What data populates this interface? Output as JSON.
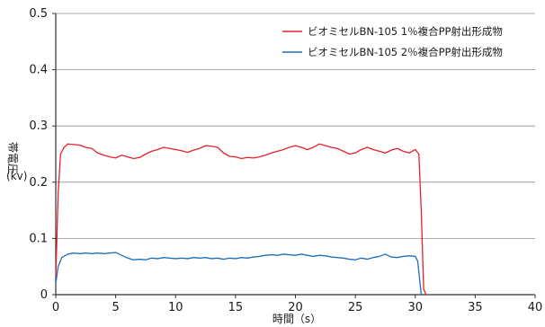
{
  "chart_data": {
    "type": "line",
    "xlabel": "時間（s）",
    "ylabel": [
      "帯電圧",
      "(kv)"
    ],
    "xlim": [
      0,
      40
    ],
    "ylim": [
      0,
      0.5
    ],
    "xticks": [
      "0",
      "5",
      "10",
      "15",
      "20",
      "25",
      "30",
      "35",
      "40"
    ],
    "yticks": [
      "0",
      "0.1",
      "0.2",
      "0.3",
      "0.4",
      "0.5"
    ],
    "grid": "horizontal",
    "legend_position": "top-right",
    "series": [
      {
        "name": "ビオミセルBN-105 1％複合PP射出形成物",
        "color": "#e8202a",
        "points": [
          [
            0,
            0.03
          ],
          [
            0.2,
            0.18
          ],
          [
            0.4,
            0.25
          ],
          [
            0.7,
            0.262
          ],
          [
            1,
            0.268
          ],
          [
            1.5,
            0.267
          ],
          [
            2,
            0.266
          ],
          [
            2.5,
            0.262
          ],
          [
            3,
            0.26
          ],
          [
            3.5,
            0.252
          ],
          [
            4,
            0.248
          ],
          [
            4.5,
            0.245
          ],
          [
            5,
            0.243
          ],
          [
            5.5,
            0.248
          ],
          [
            6,
            0.245
          ],
          [
            6.5,
            0.242
          ],
          [
            7,
            0.244
          ],
          [
            7.5,
            0.25
          ],
          [
            8,
            0.255
          ],
          [
            8.5,
            0.258
          ],
          [
            9,
            0.262
          ],
          [
            9.5,
            0.26
          ],
          [
            10,
            0.258
          ],
          [
            10.5,
            0.256
          ],
          [
            11,
            0.253
          ],
          [
            11.5,
            0.257
          ],
          [
            12,
            0.26
          ],
          [
            12.5,
            0.265
          ],
          [
            13,
            0.264
          ],
          [
            13.5,
            0.262
          ],
          [
            14,
            0.252
          ],
          [
            14.5,
            0.246
          ],
          [
            15,
            0.245
          ],
          [
            15.5,
            0.242
          ],
          [
            16,
            0.244
          ],
          [
            16.5,
            0.243
          ],
          [
            17,
            0.245
          ],
          [
            17.5,
            0.248
          ],
          [
            18,
            0.252
          ],
          [
            18.5,
            0.255
          ],
          [
            19,
            0.258
          ],
          [
            19.5,
            0.262
          ],
          [
            20,
            0.265
          ],
          [
            20.5,
            0.262
          ],
          [
            21,
            0.258
          ],
          [
            21.5,
            0.262
          ],
          [
            22,
            0.268
          ],
          [
            22.5,
            0.265
          ],
          [
            23,
            0.262
          ],
          [
            23.5,
            0.26
          ],
          [
            24,
            0.255
          ],
          [
            24.5,
            0.25
          ],
          [
            25,
            0.252
          ],
          [
            25.5,
            0.258
          ],
          [
            26,
            0.262
          ],
          [
            26.5,
            0.258
          ],
          [
            27,
            0.255
          ],
          [
            27.5,
            0.252
          ],
          [
            28,
            0.257
          ],
          [
            28.5,
            0.26
          ],
          [
            29,
            0.255
          ],
          [
            29.5,
            0.252
          ],
          [
            30,
            0.258
          ],
          [
            30.3,
            0.25
          ],
          [
            30.5,
            0.15
          ],
          [
            30.7,
            0.01
          ],
          [
            30.9,
            0
          ]
        ]
      },
      {
        "name": "ビオミセルBN-105 2％複合PP射出形成物",
        "color": "#1e6fb5",
        "points": [
          [
            0,
            0.02
          ],
          [
            0.2,
            0.05
          ],
          [
            0.5,
            0.066
          ],
          [
            1,
            0.072
          ],
          [
            1.5,
            0.074
          ],
          [
            2,
            0.073
          ],
          [
            2.5,
            0.074
          ],
          [
            3,
            0.073
          ],
          [
            3.5,
            0.074
          ],
          [
            4,
            0.073
          ],
          [
            4.5,
            0.074
          ],
          [
            5,
            0.075
          ],
          [
            5.5,
            0.07
          ],
          [
            6,
            0.065
          ],
          [
            6.5,
            0.062
          ],
          [
            7,
            0.063
          ],
          [
            7.5,
            0.062
          ],
          [
            8,
            0.065
          ],
          [
            8.5,
            0.064
          ],
          [
            9,
            0.066
          ],
          [
            9.5,
            0.065
          ],
          [
            10,
            0.064
          ],
          [
            10.5,
            0.065
          ],
          [
            11,
            0.064
          ],
          [
            11.5,
            0.066
          ],
          [
            12,
            0.065
          ],
          [
            12.5,
            0.066
          ],
          [
            13,
            0.064
          ],
          [
            13.5,
            0.065
          ],
          [
            14,
            0.063
          ],
          [
            14.5,
            0.065
          ],
          [
            15,
            0.064
          ],
          [
            15.5,
            0.066
          ],
          [
            16,
            0.065
          ],
          [
            16.5,
            0.067
          ],
          [
            17,
            0.068
          ],
          [
            17.5,
            0.07
          ],
          [
            18,
            0.071
          ],
          [
            18.5,
            0.07
          ],
          [
            19,
            0.072
          ],
          [
            19.5,
            0.071
          ],
          [
            20,
            0.07
          ],
          [
            20.5,
            0.072
          ],
          [
            21,
            0.07
          ],
          [
            21.5,
            0.068
          ],
          [
            22,
            0.07
          ],
          [
            22.5,
            0.069
          ],
          [
            23,
            0.067
          ],
          [
            23.5,
            0.066
          ],
          [
            24,
            0.065
          ],
          [
            24.5,
            0.063
          ],
          [
            25,
            0.062
          ],
          [
            25.5,
            0.065
          ],
          [
            26,
            0.063
          ],
          [
            26.5,
            0.066
          ],
          [
            27,
            0.068
          ],
          [
            27.5,
            0.072
          ],
          [
            28,
            0.067
          ],
          [
            28.5,
            0.066
          ],
          [
            29,
            0.068
          ],
          [
            29.5,
            0.069
          ],
          [
            30,
            0.068
          ],
          [
            30.2,
            0.06
          ],
          [
            30.4,
            0.02
          ],
          [
            30.5,
            0
          ]
        ]
      }
    ]
  }
}
